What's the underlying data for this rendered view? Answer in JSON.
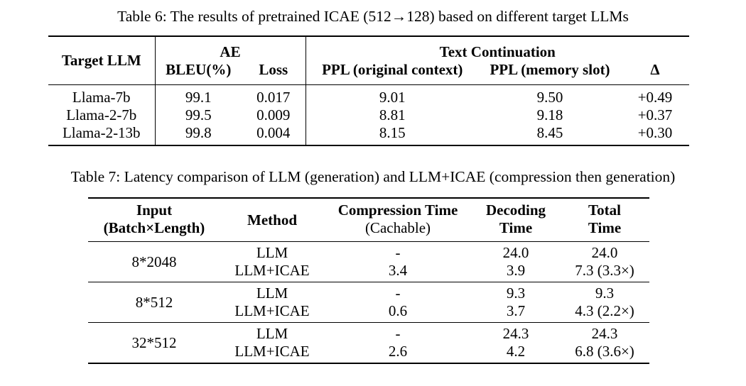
{
  "table6": {
    "caption": "Table 6: The results of pretrained ICAE (512→128) based on different target LLMs",
    "headers": {
      "target_llm": "Target LLM",
      "ae_group": "AE",
      "bleu": "BLEU(%)",
      "loss": "Loss",
      "tc_group": "Text Continuation",
      "ppl_orig": "PPL (original context)",
      "ppl_mem": "PPL (memory slot)",
      "delta": "Δ"
    },
    "rows": [
      {
        "model": "Llama-7b",
        "bleu": "99.1",
        "loss": "0.017",
        "ppl_orig": "9.01",
        "ppl_mem": "9.50",
        "delta": "+0.49"
      },
      {
        "model": "Llama-2-7b",
        "bleu": "99.5",
        "loss": "0.009",
        "ppl_orig": "8.81",
        "ppl_mem": "9.18",
        "delta": "+0.37"
      },
      {
        "model": "Llama-2-13b",
        "bleu": "99.8",
        "loss": "0.004",
        "ppl_orig": "8.15",
        "ppl_mem": "8.45",
        "delta": "+0.30"
      }
    ]
  },
  "table7": {
    "caption": "Table 7: Latency comparison of LLM (generation) and LLM+ICAE (compression then generation)",
    "headers": {
      "input_line1": "Input",
      "input_line2": "(Batch×Length)",
      "method": "Method",
      "comp_line1": "Compression Time",
      "comp_line2": "(Cachable)",
      "dec_line1": "Decoding",
      "dec_line2": "Time",
      "total_line1": "Total",
      "total_line2": "Time"
    },
    "groups": [
      {
        "input": "8*2048",
        "rows": [
          {
            "method": "LLM",
            "comp": "-",
            "dec": "24.0",
            "total": "24.0"
          },
          {
            "method": "LLM+ICAE",
            "comp": "3.4",
            "dec": "3.9",
            "total": "7.3 (3.3×)"
          }
        ]
      },
      {
        "input": "8*512",
        "rows": [
          {
            "method": "LLM",
            "comp": "-",
            "dec": "9.3",
            "total": "9.3"
          },
          {
            "method": "LLM+ICAE",
            "comp": "0.6",
            "dec": "3.7",
            "total": "4.3 (2.2×)"
          }
        ]
      },
      {
        "input": "32*512",
        "rows": [
          {
            "method": "LLM",
            "comp": "-",
            "dec": "24.3",
            "total": "24.3"
          },
          {
            "method": "LLM+ICAE",
            "comp": "2.6",
            "dec": "4.2",
            "total": "6.8 (3.6×)"
          }
        ]
      }
    ]
  }
}
